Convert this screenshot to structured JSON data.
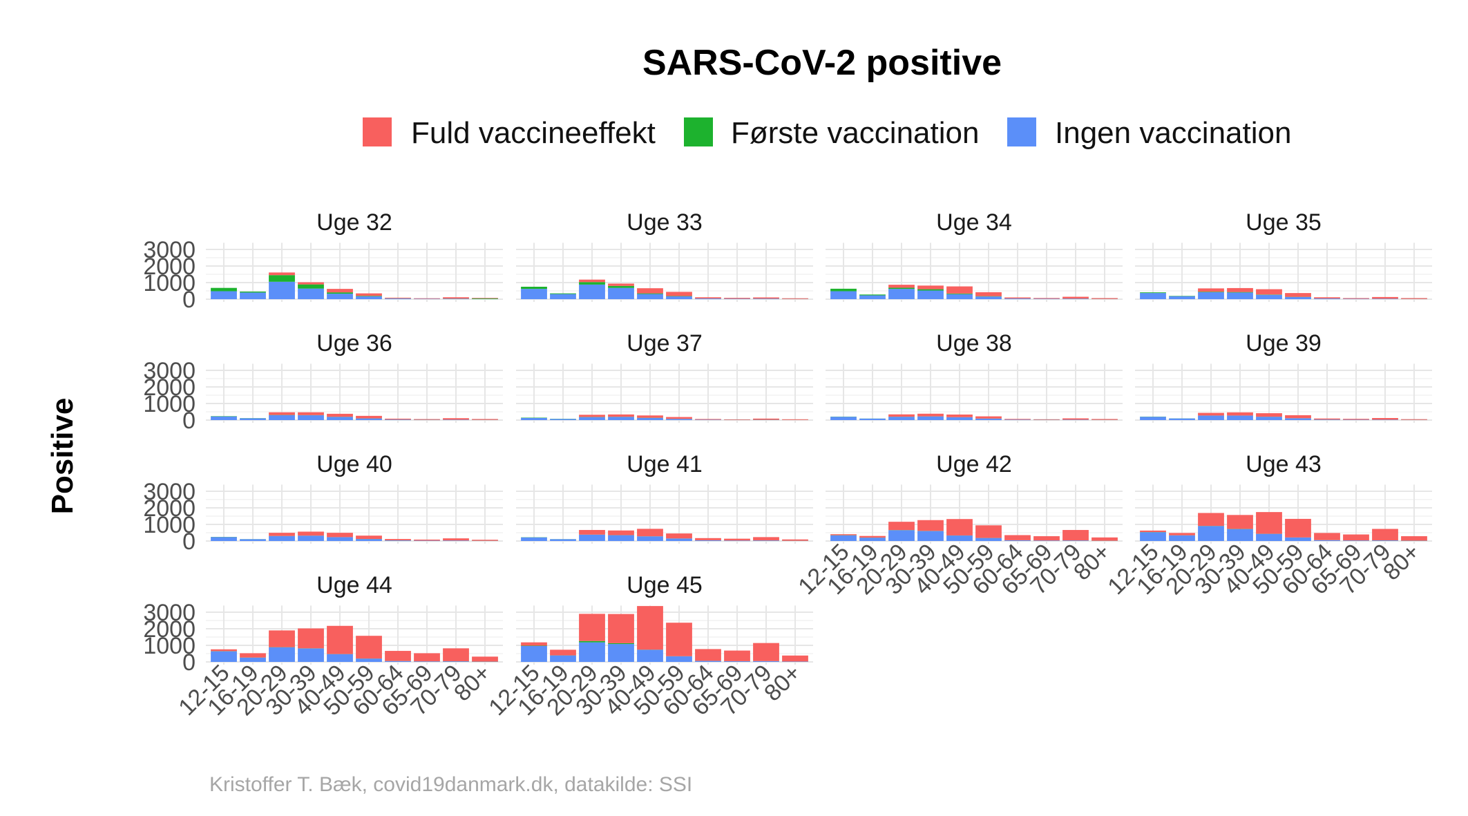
{
  "chart_data": {
    "type": "bar",
    "stacked": true,
    "title": "SARS-CoV-2 positive",
    "ylabel": "Positive",
    "xlabel": "",
    "caption": "Kristoffer T. Bæk, covid19danmark.dk, datakilde: SSI",
    "legend_position": "top",
    "ylim": [
      0,
      3400
    ],
    "yticks": [
      0,
      1000,
      2000,
      3000
    ],
    "categories": [
      "12-15",
      "16-19",
      "20-29",
      "30-39",
      "40-49",
      "50-59",
      "60-64",
      "65-69",
      "70-79",
      "80+"
    ],
    "legend": [
      {
        "key": "full",
        "label": "Fuld vaccineeffekt",
        "color": "#F8605E"
      },
      {
        "key": "first",
        "label": "Første vaccination",
        "color": "#1DB22E"
      },
      {
        "key": "none",
        "label": "Ingen vaccination",
        "color": "#5B8FF9"
      }
    ],
    "stack_order": [
      "none",
      "first",
      "full"
    ],
    "grid": true,
    "facets": [
      {
        "label": "Uge 32",
        "series": {
          "none": [
            480,
            400,
            1050,
            640,
            330,
            170,
            40,
            20,
            25,
            10
          ],
          "first": [
            200,
            60,
            400,
            250,
            80,
            30,
            10,
            5,
            10,
            40
          ],
          "full": [
            0,
            0,
            160,
            130,
            210,
            150,
            40,
            30,
            80,
            30
          ]
        }
      },
      {
        "label": "Uge 33",
        "series": {
          "none": [
            620,
            310,
            880,
            680,
            310,
            170,
            40,
            25,
            30,
            10
          ],
          "first": [
            130,
            40,
            150,
            120,
            40,
            20,
            5,
            5,
            5,
            5
          ],
          "full": [
            0,
            0,
            150,
            140,
            310,
            250,
            70,
            50,
            70,
            40
          ]
        }
      },
      {
        "label": "Uge 34",
        "series": {
          "none": [
            480,
            230,
            620,
            520,
            300,
            160,
            40,
            25,
            30,
            10
          ],
          "first": [
            150,
            50,
            70,
            80,
            40,
            20,
            5,
            5,
            5,
            5
          ],
          "full": [
            0,
            0,
            180,
            220,
            430,
            240,
            60,
            40,
            110,
            50
          ]
        }
      },
      {
        "label": "Uge 35",
        "series": {
          "none": [
            370,
            180,
            420,
            400,
            260,
            130,
            40,
            20,
            25,
            10
          ],
          "first": [
            40,
            20,
            30,
            30,
            20,
            10,
            5,
            5,
            5,
            5
          ],
          "full": [
            0,
            0,
            200,
            240,
            320,
            230,
            70,
            40,
            100,
            50
          ]
        }
      },
      {
        "label": "Uge 36",
        "series": {
          "none": [
            220,
            110,
            300,
            290,
            190,
            100,
            30,
            15,
            20,
            10
          ],
          "first": [
            20,
            10,
            10,
            10,
            10,
            5,
            5,
            5,
            5,
            5
          ],
          "full": [
            0,
            0,
            160,
            170,
            180,
            150,
            50,
            40,
            90,
            50
          ]
        }
      },
      {
        "label": "Uge 37",
        "series": {
          "none": [
            130,
            70,
            180,
            190,
            130,
            70,
            20,
            10,
            15,
            5
          ],
          "first": [
            20,
            10,
            10,
            10,
            10,
            5,
            5,
            5,
            5,
            5
          ],
          "full": [
            0,
            0,
            130,
            140,
            140,
            110,
            40,
            30,
            70,
            40
          ]
        }
      },
      {
        "label": "Uge 38",
        "series": {
          "none": [
            200,
            90,
            200,
            220,
            170,
            90,
            25,
            15,
            20,
            10
          ],
          "first": [
            10,
            5,
            5,
            5,
            5,
            5,
            5,
            5,
            5,
            5
          ],
          "full": [
            0,
            0,
            140,
            160,
            160,
            130,
            40,
            30,
            80,
            50
          ]
        }
      },
      {
        "label": "Uge 39",
        "series": {
          "none": [
            200,
            100,
            270,
            270,
            200,
            110,
            30,
            20,
            20,
            10
          ],
          "first": [
            10,
            5,
            5,
            5,
            5,
            5,
            5,
            5,
            5,
            5
          ],
          "full": [
            0,
            0,
            160,
            190,
            210,
            180,
            60,
            50,
            100,
            40
          ]
        }
      },
      {
        "label": "Uge 40",
        "series": {
          "none": [
            240,
            110,
            300,
            320,
            230,
            120,
            35,
            20,
            25,
            10
          ],
          "first": [
            10,
            5,
            5,
            5,
            5,
            5,
            5,
            5,
            5,
            5
          ],
          "full": [
            0,
            0,
            190,
            240,
            260,
            200,
            80,
            60,
            130,
            60
          ]
        }
      },
      {
        "label": "Uge 41",
        "series": {
          "none": [
            220,
            110,
            380,
            350,
            280,
            150,
            40,
            25,
            30,
            10
          ],
          "first": [
            10,
            5,
            5,
            5,
            5,
            5,
            5,
            5,
            5,
            5
          ],
          "full": [
            0,
            0,
            280,
            280,
            450,
            300,
            130,
            110,
            200,
            80
          ]
        }
      },
      {
        "label": "Uge 42",
        "series": {
          "none": [
            340,
            200,
            650,
            600,
            330,
            180,
            40,
            25,
            30,
            10
          ],
          "first": [
            10,
            5,
            10,
            10,
            5,
            5,
            5,
            5,
            5,
            5
          ],
          "full": [
            60,
            100,
            500,
            650,
            990,
            760,
            310,
            260,
            630,
            200
          ]
        }
      },
      {
        "label": "Uge 43",
        "series": {
          "none": [
            530,
            340,
            900,
            720,
            430,
            210,
            50,
            30,
            35,
            15
          ],
          "first": [
            10,
            5,
            10,
            10,
            5,
            5,
            5,
            5,
            5,
            5
          ],
          "full": [
            90,
            140,
            780,
            840,
            1310,
            1120,
            430,
            360,
            690,
            270
          ]
        }
      },
      {
        "label": "Uge 44",
        "series": {
          "none": [
            640,
            260,
            880,
            810,
            470,
            200,
            50,
            30,
            35,
            15
          ],
          "first": [
            10,
            5,
            10,
            10,
            5,
            5,
            5,
            5,
            5,
            5
          ],
          "full": [
            110,
            260,
            1010,
            1200,
            1700,
            1370,
            610,
            490,
            780,
            300
          ]
        }
      },
      {
        "label": "Uge 45",
        "series": {
          "none": [
            960,
            390,
            1180,
            1080,
            730,
            340,
            60,
            40,
            45,
            20
          ],
          "first": [
            20,
            5,
            80,
            50,
            10,
            5,
            5,
            5,
            5,
            5
          ],
          "full": [
            200,
            340,
            1640,
            1760,
            2630,
            2020,
            710,
            640,
            1090,
            360
          ]
        }
      }
    ]
  }
}
